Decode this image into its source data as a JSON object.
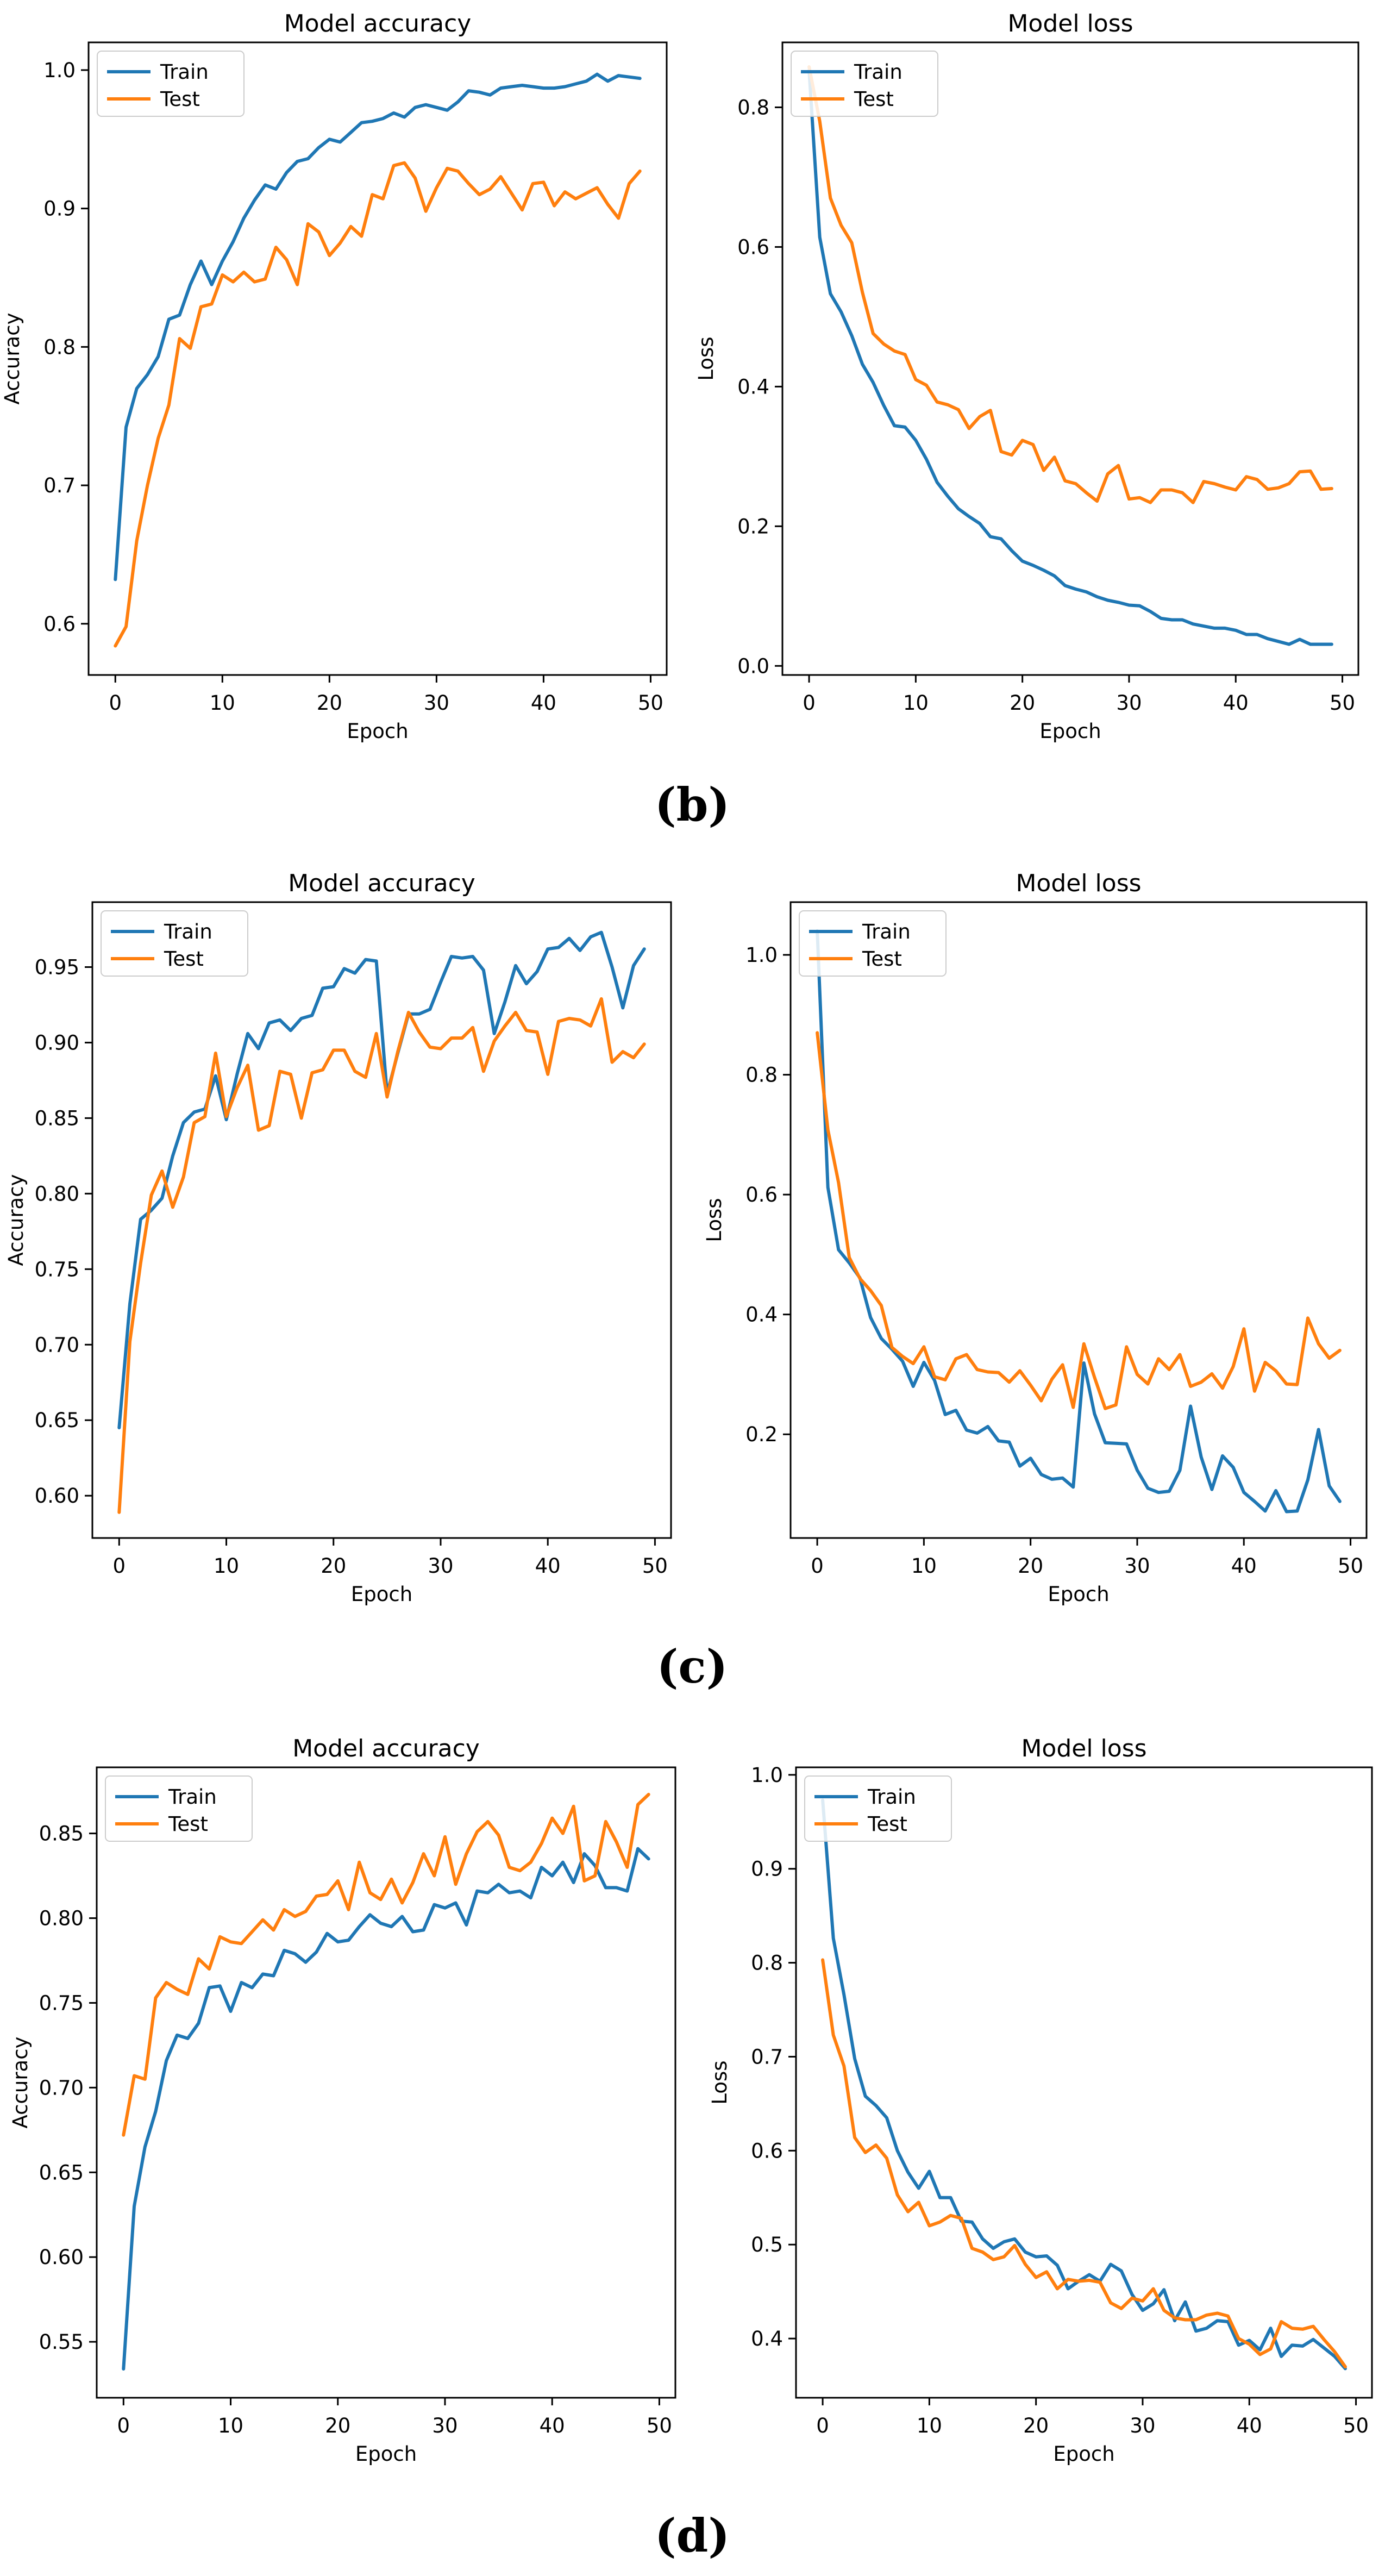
{
  "colors": {
    "train": "#1f77b4",
    "test": "#ff7f0e",
    "axis": "#000000"
  },
  "panel_labels": [
    "(b)",
    "(c)",
    "(d)"
  ],
  "chart_data": [
    {
      "type": "line",
      "title": "Model accuracy",
      "xlabel": "Epoch",
      "ylabel": "Accuracy",
      "xlim": [
        -2.5,
        51.5
      ],
      "ylim": [
        0.563,
        1.02
      ],
      "xticks": [
        0,
        10,
        20,
        30,
        40,
        50
      ],
      "yticks": [
        0.6,
        0.7,
        0.8,
        0.9,
        1.0
      ],
      "ytick_decimals": 1,
      "legend": "top-left",
      "series": [
        {
          "name": "Train",
          "color_key": "train",
          "values": [
            0.632,
            0.742,
            0.77,
            0.78,
            0.793,
            0.82,
            0.823,
            0.845,
            0.862,
            0.845,
            0.862,
            0.876,
            0.893,
            0.906,
            0.917,
            0.914,
            0.926,
            0.934,
            0.936,
            0.944,
            0.95,
            0.948,
            0.955,
            0.962,
            0.963,
            0.965,
            0.969,
            0.966,
            0.973,
            0.975,
            0.973,
            0.971,
            0.977,
            0.985,
            0.984,
            0.982,
            0.987,
            0.988,
            0.989,
            0.988,
            0.987,
            0.987,
            0.988,
            0.99,
            0.992,
            0.997,
            0.992,
            0.996,
            0.995,
            0.994
          ]
        },
        {
          "name": "Test",
          "color_key": "test",
          "values": [
            0.584,
            0.598,
            0.66,
            0.7,
            0.734,
            0.758,
            0.806,
            0.799,
            0.829,
            0.831,
            0.852,
            0.847,
            0.854,
            0.847,
            0.849,
            0.872,
            0.863,
            0.845,
            0.889,
            0.883,
            0.866,
            0.875,
            0.887,
            0.88,
            0.91,
            0.907,
            0.931,
            0.933,
            0.922,
            0.898,
            0.915,
            0.929,
            0.927,
            0.918,
            0.91,
            0.914,
            0.923,
            0.911,
            0.899,
            0.918,
            0.919,
            0.902,
            0.912,
            0.907,
            0.911,
            0.915,
            0.903,
            0.893,
            0.918,
            0.927
          ]
        }
      ]
    },
    {
      "type": "line",
      "title": "Model loss",
      "xlabel": "Epoch",
      "ylabel": "Loss",
      "xlim": [
        -2.5,
        51.5
      ],
      "ylim": [
        -0.013,
        0.893
      ],
      "xticks": [
        0,
        10,
        20,
        30,
        40,
        50
      ],
      "yticks": [
        0.0,
        0.2,
        0.4,
        0.6,
        0.8
      ],
      "ytick_decimals": 1,
      "legend": "top-left",
      "series": [
        {
          "name": "Train",
          "color_key": "train",
          "values": [
            0.853,
            0.614,
            0.533,
            0.507,
            0.473,
            0.432,
            0.406,
            0.373,
            0.344,
            0.342,
            0.323,
            0.296,
            0.263,
            0.243,
            0.225,
            0.214,
            0.204,
            0.185,
            0.182,
            0.165,
            0.15,
            0.144,
            0.137,
            0.129,
            0.115,
            0.11,
            0.106,
            0.099,
            0.094,
            0.091,
            0.087,
            0.086,
            0.078,
            0.068,
            0.066,
            0.066,
            0.06,
            0.057,
            0.054,
            0.054,
            0.051,
            0.045,
            0.045,
            0.039,
            0.035,
            0.031,
            0.038,
            0.031,
            0.031,
            0.031
          ]
        },
        {
          "name": "Test",
          "color_key": "test",
          "values": [
            0.858,
            0.78,
            0.67,
            0.631,
            0.606,
            0.535,
            0.476,
            0.461,
            0.451,
            0.446,
            0.41,
            0.402,
            0.378,
            0.374,
            0.367,
            0.34,
            0.357,
            0.366,
            0.307,
            0.302,
            0.323,
            0.317,
            0.28,
            0.299,
            0.265,
            0.261,
            0.248,
            0.236,
            0.275,
            0.287,
            0.239,
            0.241,
            0.234,
            0.252,
            0.252,
            0.248,
            0.234,
            0.264,
            0.261,
            0.256,
            0.252,
            0.271,
            0.267,
            0.253,
            0.255,
            0.261,
            0.278,
            0.279,
            0.253,
            0.254
          ]
        }
      ]
    },
    {
      "type": "line",
      "title": "Model accuracy",
      "xlabel": "Epoch",
      "ylabel": "Accuracy",
      "xlim": [
        -2.5,
        51.5
      ],
      "ylim": [
        0.572,
        0.993
      ],
      "xticks": [
        0,
        10,
        20,
        30,
        40,
        50
      ],
      "yticks": [
        0.6,
        0.65,
        0.7,
        0.75,
        0.8,
        0.85,
        0.9,
        0.95
      ],
      "ytick_decimals": 2,
      "legend": "top-left",
      "series": [
        {
          "name": "Train",
          "color_key": "train",
          "values": [
            0.645,
            0.727,
            0.783,
            0.789,
            0.797,
            0.825,
            0.847,
            0.854,
            0.856,
            0.878,
            0.849,
            0.879,
            0.906,
            0.896,
            0.913,
            0.915,
            0.908,
            0.916,
            0.918,
            0.936,
            0.937,
            0.949,
            0.946,
            0.955,
            0.954,
            0.866,
            0.893,
            0.919,
            0.919,
            0.922,
            0.94,
            0.957,
            0.956,
            0.957,
            0.948,
            0.906,
            0.927,
            0.951,
            0.939,
            0.947,
            0.962,
            0.963,
            0.969,
            0.961,
            0.97,
            0.973,
            0.95,
            0.923,
            0.951,
            0.962
          ]
        },
        {
          "name": "Test",
          "color_key": "test",
          "values": [
            0.589,
            0.702,
            0.754,
            0.799,
            0.815,
            0.791,
            0.811,
            0.847,
            0.851,
            0.893,
            0.851,
            0.87,
            0.885,
            0.842,
            0.845,
            0.881,
            0.879,
            0.85,
            0.88,
            0.882,
            0.895,
            0.895,
            0.881,
            0.877,
            0.906,
            0.864,
            0.894,
            0.92,
            0.907,
            0.897,
            0.896,
            0.903,
            0.903,
            0.91,
            0.881,
            0.901,
            0.911,
            0.92,
            0.908,
            0.907,
            0.879,
            0.914,
            0.916,
            0.915,
            0.911,
            0.929,
            0.887,
            0.894,
            0.89,
            0.899
          ]
        }
      ]
    },
    {
      "type": "line",
      "title": "Model loss",
      "xlabel": "Epoch",
      "ylabel": "Loss",
      "xlim": [
        -2.5,
        51.5
      ],
      "ylim": [
        0.027,
        1.088
      ],
      "xticks": [
        0,
        10,
        20,
        30,
        40,
        50
      ],
      "yticks": [
        0.2,
        0.4,
        0.6,
        0.8,
        1.0
      ],
      "ytick_decimals": 1,
      "legend": "top-left",
      "series": [
        {
          "name": "Train",
          "color_key": "train",
          "values": [
            1.04,
            0.612,
            0.508,
            0.486,
            0.461,
            0.395,
            0.36,
            0.342,
            0.322,
            0.28,
            0.32,
            0.29,
            0.233,
            0.24,
            0.207,
            0.202,
            0.213,
            0.189,
            0.187,
            0.147,
            0.16,
            0.133,
            0.125,
            0.127,
            0.112,
            0.319,
            0.234,
            0.186,
            0.185,
            0.184,
            0.14,
            0.11,
            0.103,
            0.105,
            0.14,
            0.247,
            0.162,
            0.108,
            0.164,
            0.145,
            0.103,
            0.088,
            0.072,
            0.106,
            0.071,
            0.072,
            0.124,
            0.208,
            0.114,
            0.088
          ]
        },
        {
          "name": "Test",
          "color_key": "test",
          "values": [
            0.87,
            0.708,
            0.62,
            0.495,
            0.46,
            0.44,
            0.415,
            0.345,
            0.33,
            0.318,
            0.346,
            0.296,
            0.291,
            0.326,
            0.333,
            0.308,
            0.304,
            0.303,
            0.287,
            0.306,
            0.282,
            0.256,
            0.292,
            0.316,
            0.245,
            0.351,
            0.295,
            0.243,
            0.249,
            0.346,
            0.3,
            0.284,
            0.326,
            0.308,
            0.333,
            0.28,
            0.287,
            0.301,
            0.277,
            0.313,
            0.376,
            0.272,
            0.32,
            0.306,
            0.284,
            0.283,
            0.394,
            0.351,
            0.327,
            0.34
          ]
        }
      ]
    },
    {
      "type": "line",
      "title": "Model accuracy",
      "xlabel": "Epoch",
      "ylabel": "Accuracy",
      "xlim": [
        -2.5,
        51.5
      ],
      "ylim": [
        0.517,
        0.889
      ],
      "xticks": [
        0,
        10,
        20,
        30,
        40,
        50
      ],
      "yticks": [
        0.55,
        0.6,
        0.65,
        0.7,
        0.75,
        0.8,
        0.85
      ],
      "ytick_decimals": 2,
      "legend": "top-left",
      "series": [
        {
          "name": "Train",
          "color_key": "train",
          "values": [
            0.534,
            0.63,
            0.665,
            0.686,
            0.716,
            0.731,
            0.729,
            0.738,
            0.759,
            0.76,
            0.745,
            0.762,
            0.759,
            0.767,
            0.766,
            0.781,
            0.779,
            0.774,
            0.78,
            0.791,
            0.786,
            0.787,
            0.795,
            0.802,
            0.797,
            0.795,
            0.801,
            0.792,
            0.793,
            0.808,
            0.806,
            0.809,
            0.796,
            0.816,
            0.815,
            0.82,
            0.815,
            0.816,
            0.812,
            0.83,
            0.825,
            0.833,
            0.821,
            0.838,
            0.831,
            0.818,
            0.818,
            0.816,
            0.841,
            0.835
          ]
        },
        {
          "name": "Test",
          "color_key": "test",
          "values": [
            0.672,
            0.707,
            0.705,
            0.753,
            0.762,
            0.758,
            0.755,
            0.776,
            0.77,
            0.789,
            0.786,
            0.785,
            0.792,
            0.799,
            0.793,
            0.805,
            0.801,
            0.804,
            0.813,
            0.814,
            0.822,
            0.805,
            0.833,
            0.815,
            0.811,
            0.823,
            0.809,
            0.821,
            0.838,
            0.825,
            0.848,
            0.82,
            0.838,
            0.851,
            0.857,
            0.849,
            0.83,
            0.828,
            0.833,
            0.844,
            0.859,
            0.85,
            0.866,
            0.822,
            0.825,
            0.857,
            0.845,
            0.83,
            0.867,
            0.873
          ]
        }
      ]
    },
    {
      "type": "line",
      "title": "Model loss",
      "xlabel": "Epoch",
      "ylabel": "Loss",
      "xlim": [
        -2.5,
        51.5
      ],
      "ylim": [
        0.337,
        1.008
      ],
      "xticks": [
        0,
        10,
        20,
        30,
        40,
        50
      ],
      "yticks": [
        0.4,
        0.5,
        0.6,
        0.7,
        0.8,
        0.9,
        1.0
      ],
      "ytick_decimals": 1,
      "legend": "top-left",
      "series": [
        {
          "name": "Train",
          "color_key": "train",
          "values": [
            0.973,
            0.826,
            0.766,
            0.698,
            0.658,
            0.648,
            0.635,
            0.6,
            0.577,
            0.56,
            0.578,
            0.55,
            0.55,
            0.525,
            0.524,
            0.506,
            0.496,
            0.503,
            0.506,
            0.492,
            0.487,
            0.488,
            0.478,
            0.453,
            0.461,
            0.468,
            0.461,
            0.479,
            0.472,
            0.447,
            0.43,
            0.437,
            0.452,
            0.419,
            0.439,
            0.408,
            0.411,
            0.419,
            0.418,
            0.393,
            0.398,
            0.388,
            0.411,
            0.381,
            0.393,
            0.392,
            0.399,
            0.39,
            0.381,
            0.368
          ]
        },
        {
          "name": "Test",
          "color_key": "test",
          "values": [
            0.803,
            0.723,
            0.69,
            0.614,
            0.598,
            0.606,
            0.592,
            0.553,
            0.535,
            0.545,
            0.52,
            0.524,
            0.531,
            0.528,
            0.496,
            0.492,
            0.484,
            0.487,
            0.499,
            0.479,
            0.465,
            0.471,
            0.453,
            0.463,
            0.461,
            0.462,
            0.46,
            0.438,
            0.432,
            0.443,
            0.44,
            0.453,
            0.43,
            0.422,
            0.42,
            0.42,
            0.425,
            0.427,
            0.424,
            0.4,
            0.394,
            0.383,
            0.389,
            0.418,
            0.411,
            0.41,
            0.413,
            0.399,
            0.386,
            0.37
          ]
        }
      ]
    }
  ]
}
